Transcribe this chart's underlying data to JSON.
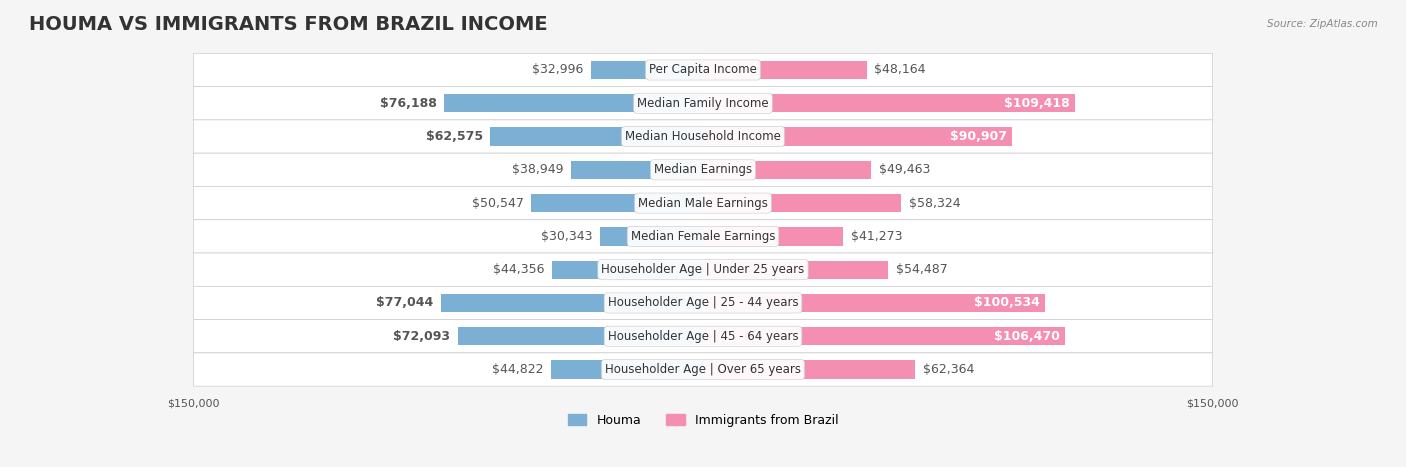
{
  "title": "HOUMA VS IMMIGRANTS FROM BRAZIL INCOME",
  "source": "Source: ZipAtlas.com",
  "categories": [
    "Per Capita Income",
    "Median Family Income",
    "Median Household Income",
    "Median Earnings",
    "Median Male Earnings",
    "Median Female Earnings",
    "Householder Age | Under 25 years",
    "Householder Age | 25 - 44 years",
    "Householder Age | 45 - 64 years",
    "Householder Age | Over 65 years"
  ],
  "houma_values": [
    32996,
    76188,
    62575,
    38949,
    50547,
    30343,
    44356,
    77044,
    72093,
    44822
  ],
  "brazil_values": [
    48164,
    109418,
    90907,
    49463,
    58324,
    41273,
    54487,
    100534,
    106470,
    62364
  ],
  "houma_labels": [
    "$32,996",
    "$76,188",
    "$62,575",
    "$38,949",
    "$50,547",
    "$30,343",
    "$44,356",
    "$77,044",
    "$72,093",
    "$44,822"
  ],
  "brazil_labels": [
    "$48,164",
    "$109,418",
    "$90,907",
    "$49,463",
    "$58,324",
    "$41,273",
    "$54,487",
    "$100,534",
    "$106,470",
    "$62,364"
  ],
  "houma_color": "#7bafd4",
  "brazil_color": "#f48fb1",
  "houma_bold": [
    false,
    true,
    true,
    false,
    false,
    false,
    false,
    true,
    true,
    false
  ],
  "brazil_bold": [
    false,
    true,
    true,
    false,
    false,
    false,
    false,
    true,
    true,
    false
  ],
  "max_value": 150000,
  "background_color": "#f5f5f5",
  "row_bg_color": "#ffffff",
  "label_color_dark": "#555555",
  "label_color_white": "#ffffff",
  "title_fontsize": 14,
  "label_fontsize": 9,
  "category_fontsize": 8.5,
  "legend_fontsize": 9,
  "axis_label_fontsize": 8
}
